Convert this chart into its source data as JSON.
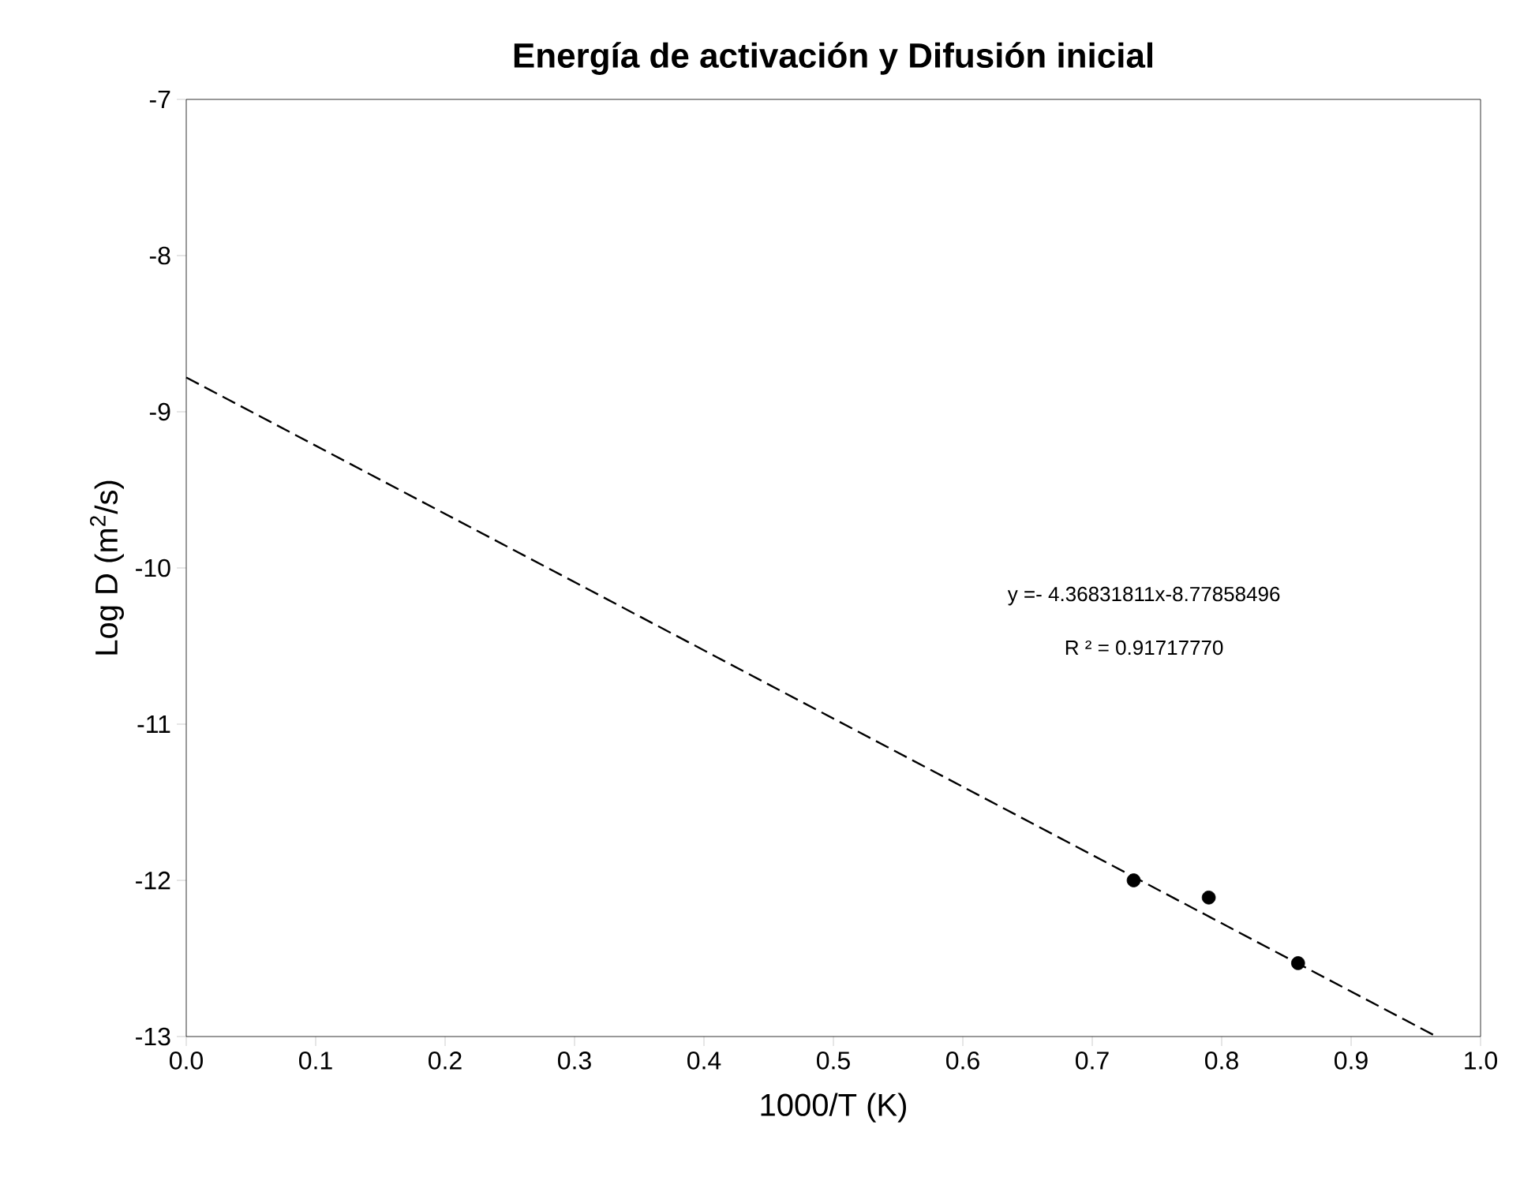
{
  "chart_data": {
    "type": "scatter",
    "title": "Energía de activación y Difusión inicial",
    "xlabel": "1000/T (K)",
    "ylabel": "Log D (m$^{2}$/s)",
    "series": [
      {
        "color": "#000000",
        "marker": "circle",
        "x": [
          0.732,
          0.79,
          0.859
        ],
        "values": [
          -12.0,
          -12.11,
          -12.53
        ]
      },
      {
        "type": "line",
        "color": "#000000",
        "line_style": "dashed",
        "marker": "none",
        "x": [
          0,
          0.966
        ],
        "values": [
          -8.78,
          -13
        ]
      }
    ],
    "annotations": [
      "y =- 4.36831811x-8.77858496",
      "R ² = 0.91717770"
    ],
    "xlim": [
      0,
      1
    ],
    "ylim": [
      -13,
      -7
    ],
    "xticks": [
      {
        "value": 0,
        "label": "0.0"
      },
      {
        "value": 0.1,
        "label": "0.1"
      },
      {
        "value": 0.2,
        "label": "0.2"
      },
      {
        "value": 0.3,
        "label": "0.3"
      },
      {
        "value": 0.4,
        "label": "0.4"
      },
      {
        "value": 0.5,
        "label": "0.5"
      },
      {
        "value": 0.6,
        "label": "0.6"
      },
      {
        "value": 0.7,
        "label": "0.7"
      },
      {
        "value": 0.8,
        "label": "0.8"
      },
      {
        "value": 0.9,
        "label": "0.9"
      },
      {
        "value": 1,
        "label": "1.0"
      }
    ],
    "yticks": [
      -13,
      -12,
      -11,
      -10,
      -9,
      -8,
      -7
    ]
  }
}
